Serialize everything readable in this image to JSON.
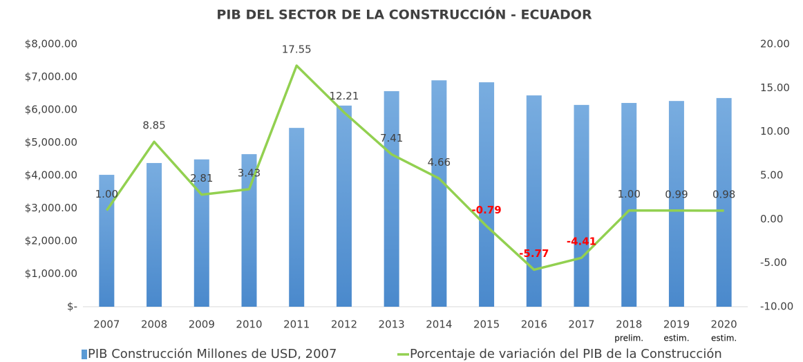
{
  "chart_data": {
    "type": "bar_line",
    "title": "PIB DEL SECTOR DE LA CONSTRUCCIÓN - ECUADOR",
    "categories": [
      "2007",
      "2008",
      "2009",
      "2010",
      "2011",
      "2012",
      "2013",
      "2014",
      "2015",
      "2016",
      "2017",
      "2018",
      "2019",
      "2020"
    ],
    "category_notes": [
      null,
      null,
      null,
      null,
      null,
      null,
      null,
      null,
      null,
      null,
      null,
      "prelim.",
      "estim.",
      "estim."
    ],
    "series": [
      {
        "name": "PIB Construcción Millones de USD, 2007",
        "type": "bar",
        "color": "#5b9bd5",
        "axis": "y",
        "values": [
          4020,
          4380,
          4490,
          4650,
          5450,
          6130,
          6570,
          6900,
          6840,
          6440,
          6150,
          6210,
          6270,
          6360
        ]
      },
      {
        "name": "Porcentaje de variación del PIB de la Construcción",
        "type": "line",
        "color": "#92d050",
        "axis": "y2",
        "values": [
          1.0,
          8.85,
          2.81,
          3.43,
          17.55,
          12.21,
          7.41,
          4.66,
          -0.79,
          -5.77,
          -4.41,
          1.0,
          0.99,
          0.98
        ],
        "value_labels": [
          "1.00",
          "8.85",
          "2.81",
          "3.43",
          "17.55",
          "12.21",
          "7.41",
          "4.66",
          "-0.79",
          "-5.77",
          "-4.41",
          "1.00",
          "0.99",
          "0.98"
        ],
        "negative_label_color": "#ff0000"
      }
    ],
    "ylim": [
      0,
      8000
    ],
    "yticks": [
      {
        "value": 0,
        "label": "$-"
      },
      {
        "value": 1000,
        "label": "$1,000.00"
      },
      {
        "value": 2000,
        "label": "$2,000.00"
      },
      {
        "value": 3000,
        "label": "$3,000.00"
      },
      {
        "value": 4000,
        "label": "$4,000.00"
      },
      {
        "value": 5000,
        "label": "$5,000.00"
      },
      {
        "value": 6000,
        "label": "$6,000.00"
      },
      {
        "value": 7000,
        "label": "$7,000.00"
      },
      {
        "value": 8000,
        "label": "$8,000.00"
      }
    ],
    "y2lim": [
      -10,
      20
    ],
    "y2ticks": [
      {
        "value": -10,
        "label": "-10.00"
      },
      {
        "value": -5,
        "label": "-5.00"
      },
      {
        "value": 0,
        "label": "0.00"
      },
      {
        "value": 5,
        "label": "5.00"
      },
      {
        "value": 10,
        "label": "10.00"
      },
      {
        "value": 15,
        "label": "15.00"
      },
      {
        "value": 20,
        "label": "20.00"
      }
    ],
    "grid": false,
    "legend": "bottom"
  }
}
